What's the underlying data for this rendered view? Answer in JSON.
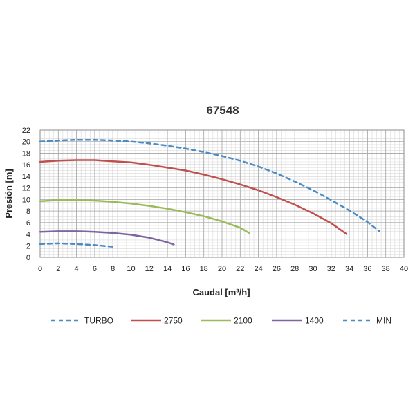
{
  "chart_data": {
    "type": "line",
    "title": "67548",
    "xlabel": "Caudal [m³/h]",
    "ylabel": "Presión [m]",
    "xlim": [
      0,
      40
    ],
    "ylim": [
      0,
      22
    ],
    "xticks": [
      0,
      2,
      4,
      6,
      8,
      10,
      12,
      14,
      16,
      18,
      20,
      22,
      24,
      26,
      28,
      30,
      32,
      34,
      36,
      38,
      40
    ],
    "yticks": [
      0,
      2,
      4,
      6,
      8,
      10,
      12,
      14,
      16,
      18,
      20,
      22
    ],
    "grid": true,
    "legend_position": "bottom",
    "series": [
      {
        "name": "TURBO",
        "color": "#4A8BC4",
        "dash": "dashed",
        "points": [
          [
            0,
            20.0
          ],
          [
            2,
            20.2
          ],
          [
            4,
            20.3
          ],
          [
            6,
            20.3
          ],
          [
            8,
            20.2
          ],
          [
            10,
            20.0
          ],
          [
            12,
            19.7
          ],
          [
            14,
            19.3
          ],
          [
            16,
            18.8
          ],
          [
            18,
            18.2
          ],
          [
            20,
            17.5
          ],
          [
            22,
            16.7
          ],
          [
            24,
            15.7
          ],
          [
            26,
            14.5
          ],
          [
            28,
            13.1
          ],
          [
            30,
            11.6
          ],
          [
            32,
            9.9
          ],
          [
            34,
            8.1
          ],
          [
            36,
            6.1
          ],
          [
            37.3,
            4.5
          ]
        ]
      },
      {
        "name": "2750",
        "color": "#C0504D",
        "dash": "solid",
        "points": [
          [
            0,
            16.5
          ],
          [
            2,
            16.7
          ],
          [
            4,
            16.8
          ],
          [
            6,
            16.8
          ],
          [
            8,
            16.6
          ],
          [
            10,
            16.4
          ],
          [
            12,
            16.0
          ],
          [
            14,
            15.5
          ],
          [
            16,
            15.0
          ],
          [
            18,
            14.3
          ],
          [
            20,
            13.5
          ],
          [
            22,
            12.6
          ],
          [
            24,
            11.6
          ],
          [
            26,
            10.4
          ],
          [
            28,
            9.1
          ],
          [
            30,
            7.6
          ],
          [
            32,
            5.9
          ],
          [
            33.7,
            4.0
          ]
        ]
      },
      {
        "name": "2100",
        "color": "#9BBB59",
        "dash": "solid",
        "points": [
          [
            0,
            9.7
          ],
          [
            2,
            9.9
          ],
          [
            4,
            9.9
          ],
          [
            6,
            9.8
          ],
          [
            8,
            9.6
          ],
          [
            10,
            9.3
          ],
          [
            12,
            8.9
          ],
          [
            14,
            8.4
          ],
          [
            16,
            7.8
          ],
          [
            18,
            7.1
          ],
          [
            20,
            6.2
          ],
          [
            22,
            5.1
          ],
          [
            23,
            4.2
          ]
        ]
      },
      {
        "name": "1400",
        "color": "#8064A2",
        "dash": "solid",
        "points": [
          [
            0,
            4.4
          ],
          [
            2,
            4.5
          ],
          [
            4,
            4.5
          ],
          [
            6,
            4.4
          ],
          [
            8,
            4.2
          ],
          [
            10,
            3.9
          ],
          [
            12,
            3.4
          ],
          [
            14,
            2.6
          ],
          [
            14.7,
            2.2
          ]
        ]
      },
      {
        "name": "MIN",
        "color": "#4A8BC4",
        "dash": "dashed",
        "points": [
          [
            0,
            2.3
          ],
          [
            2,
            2.4
          ],
          [
            4,
            2.3
          ],
          [
            6,
            2.1
          ],
          [
            8.2,
            1.8
          ]
        ]
      }
    ]
  }
}
